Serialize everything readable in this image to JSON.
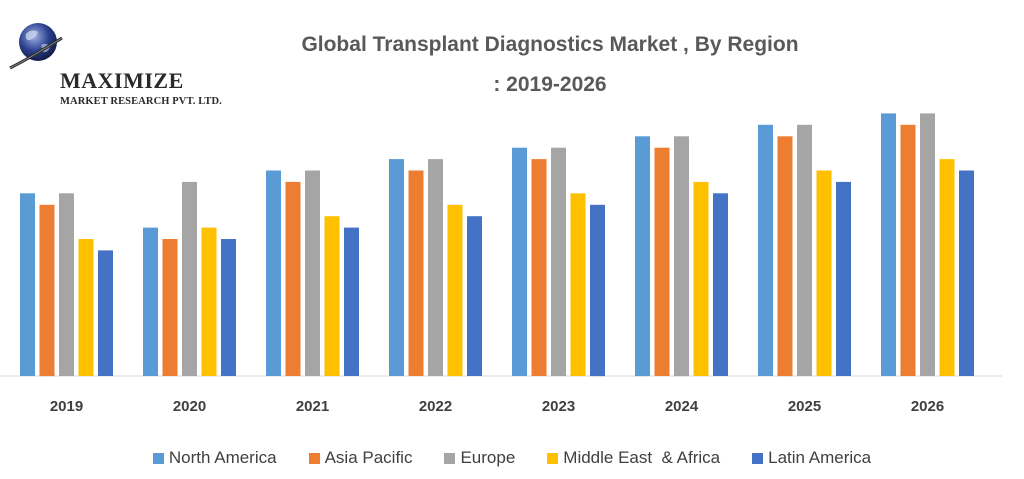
{
  "logo": {
    "name": "MAXIMIZE",
    "subtitle": "MARKET RESEARCH PVT. LTD."
  },
  "title_line1": "Global Transplant Diagnostics Market , By Region",
  "title_line2": ": 2019-2026",
  "chart_data": {
    "type": "bar",
    "title": "Global Transplant Diagnostics Market , By Region : 2019-2026",
    "xlabel": "",
    "ylabel": "",
    "ylim": [
      0,
      24
    ],
    "grid": false,
    "legend_position": "bottom",
    "categories": [
      "2019",
      "2020",
      "2021",
      "2022",
      "2023",
      "2024",
      "2025",
      "2026"
    ],
    "series": [
      {
        "name": "North America",
        "color": "#5b9bd5",
        "values": [
          16,
          13,
          18,
          19,
          20,
          21,
          22,
          23
        ]
      },
      {
        "name": "Asia Pacific",
        "color": "#ed7d31",
        "values": [
          15,
          12,
          17,
          18,
          19,
          20,
          21,
          22
        ]
      },
      {
        "name": "Europe",
        "color": "#a5a5a5",
        "values": [
          16,
          17,
          18,
          19,
          20,
          21,
          22,
          23
        ]
      },
      {
        "name": "Middle East  & Africa",
        "color": "#ffc000",
        "values": [
          12,
          13,
          14,
          15,
          16,
          17,
          18,
          19
        ]
      },
      {
        "name": "Latin America",
        "color": "#4472c4",
        "values": [
          11,
          12,
          13,
          14,
          15,
          16,
          17,
          18
        ]
      }
    ]
  }
}
